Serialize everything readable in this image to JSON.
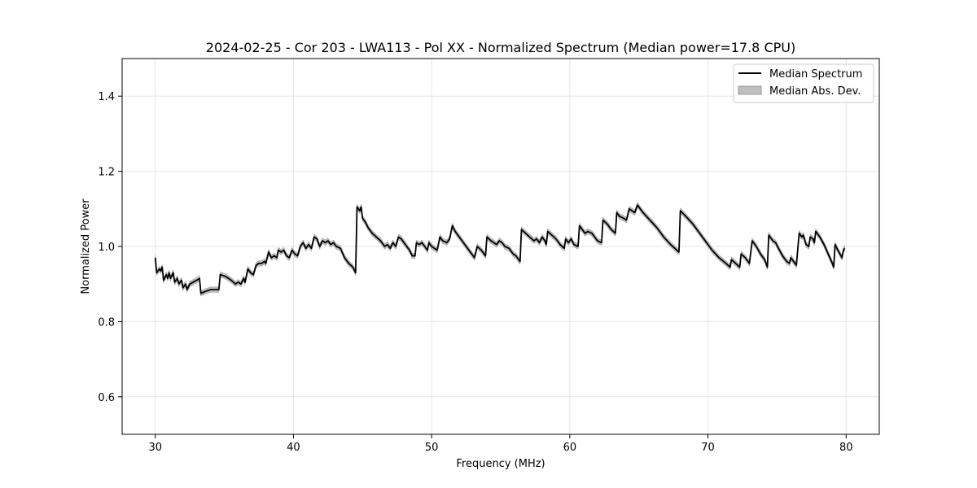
{
  "chart_data": {
    "type": "line",
    "title": "2024-02-25 - Cor 203 - LWA113 - Pol XX - Normalized Spectrum (Median power=17.8 CPU)",
    "xlabel": "Frequency (MHz)",
    "ylabel": "Normalized Power",
    "xlim": [
      27.6,
      82.4
    ],
    "ylim": [
      0.5,
      1.5
    ],
    "xticks": [
      30,
      40,
      50,
      60,
      70,
      80
    ],
    "xtick_labels": [
      "30",
      "40",
      "50",
      "60",
      "70",
      "80"
    ],
    "yticks": [
      0.6,
      0.8,
      1.0,
      1.2,
      1.4
    ],
    "ytick_labels": [
      "0.6",
      "0.8",
      "1.0",
      "1.2",
      "1.4"
    ],
    "grid": true,
    "legend": {
      "placement": "top-right",
      "entries": [
        {
          "label": "Median Spectrum",
          "style": "line"
        },
        {
          "label": "Median Abs. Dev.",
          "style": "band"
        }
      ]
    },
    "colors": {
      "line": "#000000",
      "band": "#bfbfbf",
      "band_edge": "#9a9a9a",
      "grid": "#e6e6e6"
    },
    "series": [
      {
        "name": "Median Spectrum",
        "band_halfwidth": 0.007,
        "points": [
          [
            30.0,
            0.97
          ],
          [
            30.1,
            0.93
          ],
          [
            30.3,
            0.94
          ],
          [
            30.4,
            0.935
          ],
          [
            30.5,
            0.945
          ],
          [
            30.6,
            0.91
          ],
          [
            30.8,
            0.925
          ],
          [
            30.9,
            0.915
          ],
          [
            31.0,
            0.93
          ],
          [
            31.1,
            0.915
          ],
          [
            31.3,
            0.93
          ],
          [
            31.4,
            0.905
          ],
          [
            31.6,
            0.915
          ],
          [
            31.7,
            0.9
          ],
          [
            31.9,
            0.91
          ],
          [
            32.0,
            0.89
          ],
          [
            32.2,
            0.9
          ],
          [
            32.3,
            0.885
          ],
          [
            32.5,
            0.9
          ],
          [
            33.0,
            0.91
          ],
          [
            33.2,
            0.915
          ],
          [
            33.3,
            0.875
          ],
          [
            33.6,
            0.88
          ],
          [
            34.0,
            0.885
          ],
          [
            34.6,
            0.885
          ],
          [
            34.7,
            0.925
          ],
          [
            35.1,
            0.92
          ],
          [
            35.5,
            0.91
          ],
          [
            35.8,
            0.9
          ],
          [
            36.0,
            0.905
          ],
          [
            36.2,
            0.9
          ],
          [
            36.4,
            0.915
          ],
          [
            36.5,
            0.905
          ],
          [
            36.7,
            0.94
          ],
          [
            36.9,
            0.93
          ],
          [
            37.1,
            0.925
          ],
          [
            37.3,
            0.95
          ],
          [
            37.5,
            0.955
          ],
          [
            37.7,
            0.955
          ],
          [
            37.9,
            0.96
          ],
          [
            38.0,
            0.955
          ],
          [
            38.2,
            0.985
          ],
          [
            38.4,
            0.97
          ],
          [
            38.6,
            0.975
          ],
          [
            38.8,
            0.97
          ],
          [
            38.9,
            0.99
          ],
          [
            39.1,
            0.985
          ],
          [
            39.3,
            0.99
          ],
          [
            39.5,
            0.975
          ],
          [
            39.7,
            0.97
          ],
          [
            39.9,
            0.99
          ],
          [
            40.1,
            0.98
          ],
          [
            40.3,
            0.975
          ],
          [
            40.5,
            1.0
          ],
          [
            40.7,
            1.01
          ],
          [
            40.9,
            0.995
          ],
          [
            41.1,
            1.005
          ],
          [
            41.3,
            0.995
          ],
          [
            41.5,
            1.025
          ],
          [
            41.7,
            1.02
          ],
          [
            41.9,
            1.0
          ],
          [
            42.1,
            1.015
          ],
          [
            42.3,
            1.01
          ],
          [
            42.5,
            1.015
          ],
          [
            42.7,
            1.005
          ],
          [
            42.9,
            1.01
          ],
          [
            43.1,
            1.0
          ],
          [
            43.4,
            0.995
          ],
          [
            43.7,
            0.97
          ],
          [
            44.0,
            0.955
          ],
          [
            44.3,
            0.945
          ],
          [
            44.5,
            0.93
          ],
          [
            44.6,
            1.105
          ],
          [
            44.8,
            1.095
          ],
          [
            44.9,
            1.105
          ],
          [
            45.0,
            1.075
          ],
          [
            45.2,
            1.065
          ],
          [
            45.4,
            1.05
          ],
          [
            45.7,
            1.035
          ],
          [
            46.0,
            1.025
          ],
          [
            46.3,
            1.015
          ],
          [
            46.6,
            1.0
          ],
          [
            46.8,
            1.005
          ],
          [
            47.0,
            0.995
          ],
          [
            47.2,
            1.01
          ],
          [
            47.4,
            1.0
          ],
          [
            47.6,
            1.025
          ],
          [
            47.8,
            1.02
          ],
          [
            48.1,
            1.005
          ],
          [
            48.4,
            0.99
          ],
          [
            48.6,
            0.975
          ],
          [
            48.8,
            0.975
          ],
          [
            48.9,
            1.01
          ],
          [
            49.1,
            1.005
          ],
          [
            49.3,
            1.01
          ],
          [
            49.5,
            1.0
          ],
          [
            49.7,
            0.99
          ],
          [
            49.8,
            1.01
          ],
          [
            50.0,
            1.0
          ],
          [
            50.2,
            0.995
          ],
          [
            50.4,
            0.99
          ],
          [
            50.6,
            1.025
          ],
          [
            50.8,
            1.015
          ],
          [
            51.1,
            1.01
          ],
          [
            51.3,
            1.02
          ],
          [
            51.5,
            1.055
          ],
          [
            51.7,
            1.04
          ],
          [
            52.0,
            1.025
          ],
          [
            52.3,
            1.01
          ],
          [
            52.6,
            0.995
          ],
          [
            52.9,
            0.98
          ],
          [
            53.1,
            0.97
          ],
          [
            53.3,
            1.0
          ],
          [
            53.6,
            0.99
          ],
          [
            53.9,
            0.975
          ],
          [
            54.0,
            1.025
          ],
          [
            54.3,
            1.015
          ],
          [
            54.5,
            1.01
          ],
          [
            54.7,
            1.005
          ],
          [
            54.9,
            1.015
          ],
          [
            55.1,
            1.01
          ],
          [
            55.3,
            1.0
          ],
          [
            55.6,
            0.995
          ],
          [
            55.9,
            0.98
          ],
          [
            56.1,
            0.975
          ],
          [
            56.4,
            0.96
          ],
          [
            56.5,
            1.045
          ],
          [
            56.8,
            1.035
          ],
          [
            57.1,
            1.025
          ],
          [
            57.4,
            1.015
          ],
          [
            57.6,
            1.02
          ],
          [
            57.8,
            1.01
          ],
          [
            58.0,
            1.025
          ],
          [
            58.2,
            1.015
          ],
          [
            58.3,
            1.005
          ],
          [
            58.4,
            1.04
          ],
          [
            58.7,
            1.03
          ],
          [
            59.0,
            1.02
          ],
          [
            59.3,
            1.005
          ],
          [
            59.6,
            0.995
          ],
          [
            59.7,
            1.02
          ],
          [
            59.9,
            1.01
          ],
          [
            60.1,
            1.02
          ],
          [
            60.3,
            1.005
          ],
          [
            60.6,
            1.0
          ],
          [
            60.7,
            1.055
          ],
          [
            60.9,
            1.045
          ],
          [
            61.1,
            1.035
          ],
          [
            61.3,
            1.04
          ],
          [
            61.6,
            1.035
          ],
          [
            61.8,
            1.025
          ],
          [
            62.0,
            1.015
          ],
          [
            62.3,
            1.01
          ],
          [
            62.4,
            1.07
          ],
          [
            62.7,
            1.06
          ],
          [
            63.0,
            1.045
          ],
          [
            63.3,
            1.035
          ],
          [
            63.4,
            1.09
          ],
          [
            63.6,
            1.08
          ],
          [
            63.9,
            1.075
          ],
          [
            64.1,
            1.07
          ],
          [
            64.3,
            1.1
          ],
          [
            64.5,
            1.095
          ],
          [
            64.7,
            1.09
          ],
          [
            64.9,
            1.11
          ],
          [
            65.3,
            1.09
          ],
          [
            65.8,
            1.07
          ],
          [
            66.3,
            1.05
          ],
          [
            66.8,
            1.025
          ],
          [
            67.3,
            1.005
          ],
          [
            67.9,
            0.985
          ],
          [
            68.0,
            1.095
          ],
          [
            68.4,
            1.08
          ],
          [
            68.9,
            1.06
          ],
          [
            69.3,
            1.04
          ],
          [
            69.8,
            1.015
          ],
          [
            70.3,
            0.99
          ],
          [
            70.8,
            0.97
          ],
          [
            71.3,
            0.955
          ],
          [
            71.6,
            0.945
          ],
          [
            71.7,
            0.965
          ],
          [
            72.0,
            0.955
          ],
          [
            72.3,
            0.945
          ],
          [
            72.4,
            0.98
          ],
          [
            72.7,
            0.97
          ],
          [
            73.0,
            0.955
          ],
          [
            73.2,
            1.015
          ],
          [
            73.5,
            1.0
          ],
          [
            73.8,
            0.98
          ],
          [
            74.1,
            0.965
          ],
          [
            74.3,
            0.945
          ],
          [
            74.4,
            1.03
          ],
          [
            74.7,
            1.015
          ],
          [
            74.9,
            1.01
          ],
          [
            75.1,
            0.995
          ],
          [
            75.4,
            0.975
          ],
          [
            75.7,
            0.96
          ],
          [
            75.9,
            0.955
          ],
          [
            76.0,
            0.97
          ],
          [
            76.3,
            0.955
          ],
          [
            76.4,
            0.95
          ],
          [
            76.6,
            1.035
          ],
          [
            76.8,
            1.025
          ],
          [
            76.9,
            1.03
          ],
          [
            77.1,
            1.005
          ],
          [
            77.3,
            1.0
          ],
          [
            77.4,
            1.025
          ],
          [
            77.6,
            1.02
          ],
          [
            77.7,
            1.01
          ],
          [
            77.8,
            1.04
          ],
          [
            78.1,
            1.025
          ],
          [
            78.4,
            1.005
          ],
          [
            78.7,
            0.98
          ],
          [
            79.0,
            0.955
          ],
          [
            79.1,
            0.945
          ],
          [
            79.2,
            1.005
          ],
          [
            79.4,
            0.99
          ],
          [
            79.7,
            0.97
          ],
          [
            79.8,
            0.99
          ],
          [
            79.9,
            0.995
          ]
        ]
      }
    ]
  }
}
